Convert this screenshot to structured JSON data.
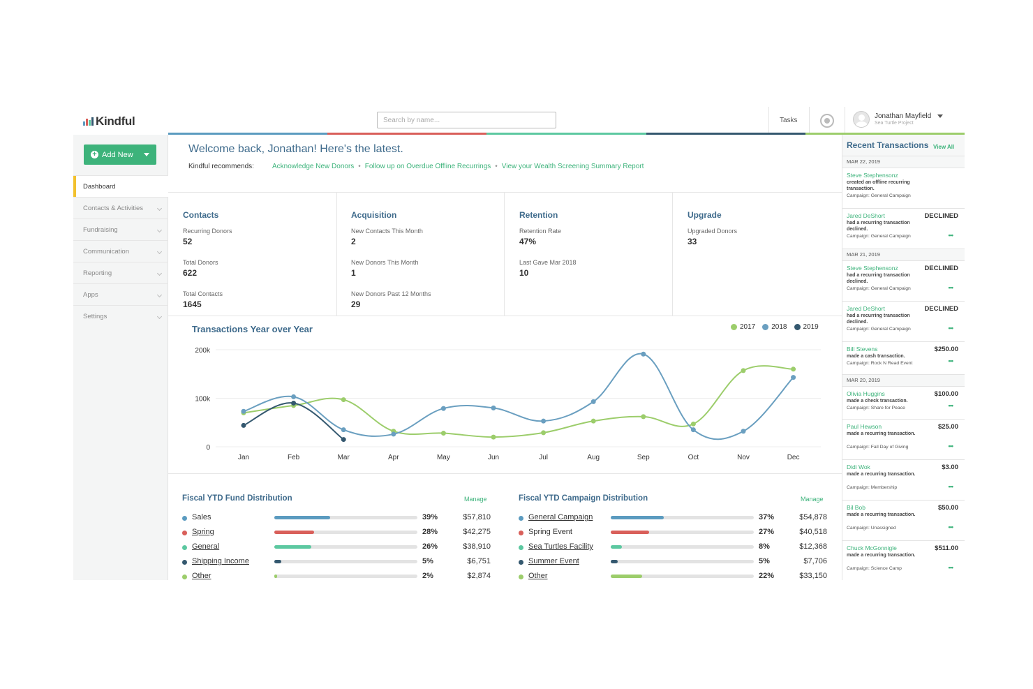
{
  "header": {
    "logo": "Kindful",
    "search_placeholder": "Search by name...",
    "tasks_label": "Tasks",
    "user_name": "Jonathan Mayfield",
    "user_org": "Sea Turtle Project"
  },
  "colors": {
    "accent_green": "#3db37b",
    "title_blue": "#3f6b8c",
    "bar_blue": "#5b9bc0",
    "bar_red": "#d95f5a",
    "bar_teal": "#5cc8a0",
    "bar_navy": "#34586f",
    "bar_lightgreen": "#9ccd6b",
    "active_marker": "#f2c12e"
  },
  "sidebar": {
    "add_new_label": "Add New",
    "items": [
      {
        "label": "Dashboard",
        "active": true
      },
      {
        "label": "Contacts & Activities"
      },
      {
        "label": "Fundraising"
      },
      {
        "label": "Communication"
      },
      {
        "label": "Reporting"
      },
      {
        "label": "Apps"
      },
      {
        "label": "Settings"
      }
    ]
  },
  "main": {
    "welcome": "Welcome back, Jonathan! Here's the latest.",
    "recommends_label": "Kindful recommends:",
    "recommendations": [
      "Acknowledge New Donors",
      "Follow up on Overdue Offline Recurrings",
      "View your Wealth Screening Summary Report"
    ],
    "stats": [
      {
        "title": "Contacts",
        "items": [
          {
            "label": "Recurring Donors",
            "value": "52"
          },
          {
            "label": "Total Donors",
            "value": "622"
          },
          {
            "label": "Total Contacts",
            "value": "1645"
          }
        ]
      },
      {
        "title": "Acquisition",
        "items": [
          {
            "label": "New Contacts This Month",
            "value": "2"
          },
          {
            "label": "New Donors This Month",
            "value": "1"
          },
          {
            "label": "New Donors Past 12 Months",
            "value": "29"
          }
        ]
      },
      {
        "title": "Retention",
        "items": [
          {
            "label": "Retention Rate",
            "value": "47%"
          },
          {
            "label": "Last Gave Mar 2018",
            "value": "10"
          }
        ]
      },
      {
        "title": "Upgrade",
        "items": [
          {
            "label": "Upgraded Donors",
            "value": "33"
          }
        ]
      }
    ],
    "fund_distribution": {
      "title": "Fiscal YTD Fund Distribution",
      "manage_label": "Manage",
      "rows": [
        {
          "name": "Sales",
          "pct": "39%",
          "fraction": 0.39,
          "amount": "$57,810",
          "color": "#5b9bc0",
          "link": false
        },
        {
          "name": "Spring",
          "pct": "28%",
          "fraction": 0.28,
          "amount": "$42,275",
          "color": "#d95f5a",
          "link": true
        },
        {
          "name": "General",
          "pct": "26%",
          "fraction": 0.26,
          "amount": "$38,910",
          "color": "#5cc8a0",
          "link": true
        },
        {
          "name": "Shipping Income",
          "pct": "5%",
          "fraction": 0.05,
          "amount": "$6,751",
          "color": "#34586f",
          "link": true
        },
        {
          "name": "Other",
          "pct": "2%",
          "fraction": 0.02,
          "amount": "$2,874",
          "color": "#9ccd6b",
          "link": true
        }
      ]
    },
    "campaign_distribution": {
      "title": "Fiscal YTD Campaign Distribution",
      "manage_label": "Manage",
      "rows": [
        {
          "name": "General Campaign",
          "pct": "37%",
          "fraction": 0.37,
          "amount": "$54,878",
          "color": "#5b9bc0",
          "link": true
        },
        {
          "name": "Spring Event",
          "pct": "27%",
          "fraction": 0.27,
          "amount": "$40,518",
          "color": "#d95f5a",
          "link": false
        },
        {
          "name": "Sea Turtles Facility",
          "pct": "8%",
          "fraction": 0.08,
          "amount": "$12,368",
          "color": "#5cc8a0",
          "link": true
        },
        {
          "name": "Summer Event",
          "pct": "5%",
          "fraction": 0.05,
          "amount": "$7,706",
          "color": "#34586f",
          "link": true
        },
        {
          "name": "Other",
          "pct": "22%",
          "fraction": 0.22,
          "amount": "$33,150",
          "color": "#9ccd6b",
          "link": true
        }
      ]
    }
  },
  "chart_data": {
    "type": "line",
    "title": "Transactions Year over Year",
    "categories": [
      "Jan",
      "Feb",
      "Mar",
      "Apr",
      "May",
      "Jun",
      "Jul",
      "Aug",
      "Sep",
      "Oct",
      "Nov",
      "Dec"
    ],
    "y_ticks": [
      "0",
      "100k",
      "200k"
    ],
    "ylim": [
      0,
      200000
    ],
    "grid": true,
    "legend": "top-right",
    "series": [
      {
        "name": "2017",
        "color": "#9ccd6b",
        "values": [
          70000,
          85000,
          97000,
          32000,
          28000,
          20000,
          29000,
          53000,
          62000,
          47000,
          157000,
          160000
        ]
      },
      {
        "name": "2018",
        "color": "#6a9fc0",
        "values": [
          73000,
          103000,
          35000,
          26000,
          79000,
          80000,
          53000,
          93000,
          191000,
          35000,
          32000,
          143000
        ]
      },
      {
        "name": "2019",
        "color": "#34586f",
        "values": [
          44000,
          90000,
          15000,
          null,
          null,
          null,
          null,
          null,
          null,
          null,
          null,
          null
        ]
      }
    ]
  },
  "transactions": {
    "title": "Recent Transactions",
    "view_all": "View All",
    "groups": [
      {
        "date": "MAR 22, 2019",
        "items": [
          {
            "name": "Steve Stephensonz",
            "desc": "created an offline recurring transaction.",
            "amount": "",
            "campaign": "Campaign: General Campaign",
            "more": false
          },
          {
            "name": "Jared DeShort",
            "desc": "had a recurring transaction declined.",
            "amount": "DECLINED",
            "campaign": "Campaign: General Campaign",
            "more": true
          }
        ]
      },
      {
        "date": "MAR 21, 2019",
        "items": [
          {
            "name": "Steve Stephensonz",
            "desc": "had a recurring transaction declined.",
            "amount": "DECLINED",
            "campaign": "Campaign: General Campaign",
            "more": true
          },
          {
            "name": "Jared DeShort",
            "desc": "had a recurring transaction declined.",
            "amount": "DECLINED",
            "campaign": "Campaign: General Campaign",
            "more": true
          },
          {
            "name": "Bill Stevens",
            "desc": "made a cash transaction.",
            "amount": "$250.00",
            "campaign": "Campaign: Rock N Read Event",
            "more": true
          }
        ]
      },
      {
        "date": "MAR 20, 2019",
        "items": [
          {
            "name": "Olivia Huggins",
            "desc": "made a check transaction.",
            "amount": "$100.00",
            "campaign": "Campaign: Share for Peace",
            "more": true
          },
          {
            "name": "Paul Hewson",
            "desc": "made a recurring transaction.",
            "amount": "$25.00",
            "campaign": "Campaign: Fall Day of Giving",
            "more": true
          },
          {
            "name": "Didi Wok",
            "desc": "made a recurring transaction.",
            "amount": "$3.00",
            "campaign": "Campaign: Membership",
            "more": true
          },
          {
            "name": "Bil Bob",
            "desc": "made a recurring transaction.",
            "amount": "$50.00",
            "campaign": "Campaign: Unassigned",
            "more": true
          },
          {
            "name": "Chuck McGonnigle",
            "desc": "made a recurring transaction.",
            "amount": "$511.00",
            "campaign": "Campaign: Science Camp",
            "more": true
          }
        ]
      }
    ]
  }
}
